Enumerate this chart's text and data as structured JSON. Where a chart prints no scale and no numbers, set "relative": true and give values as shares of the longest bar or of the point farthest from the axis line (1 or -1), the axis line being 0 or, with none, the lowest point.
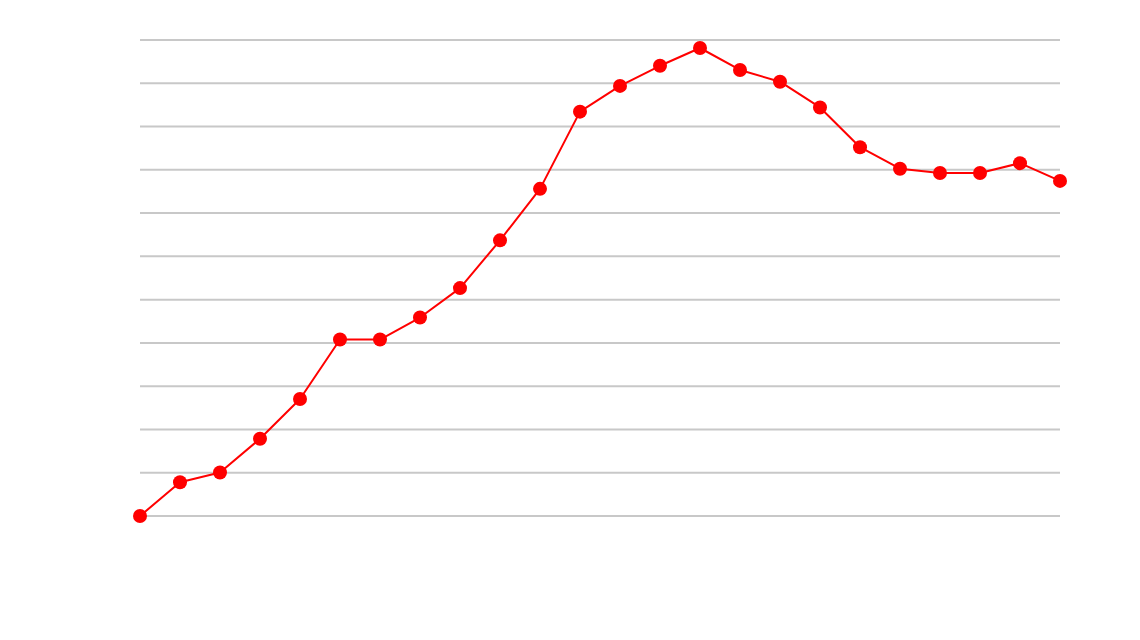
{
  "chart_data": {
    "type": "line",
    "relative": true,
    "grid": true,
    "marker": "circle",
    "line_style": "solid",
    "categories": [
      null,
      null,
      null,
      null,
      null,
      null,
      null,
      null,
      null,
      null,
      null,
      null,
      null,
      null,
      null,
      null,
      null,
      null,
      null,
      null,
      null,
      null,
      null,
      null
    ],
    "series": [
      {
        "color": "#ff0000",
        "values": [
          0,
          0.072,
          0.093,
          0.165,
          0.25,
          0.377,
          0.377,
          0.424,
          0.487,
          0.589,
          0.699,
          0.864,
          0.919,
          0.962,
          1,
          0.953,
          0.928,
          0.873,
          0.788,
          0.742,
          0.733,
          0.733,
          0.754,
          0.716
        ]
      }
    ]
  }
}
